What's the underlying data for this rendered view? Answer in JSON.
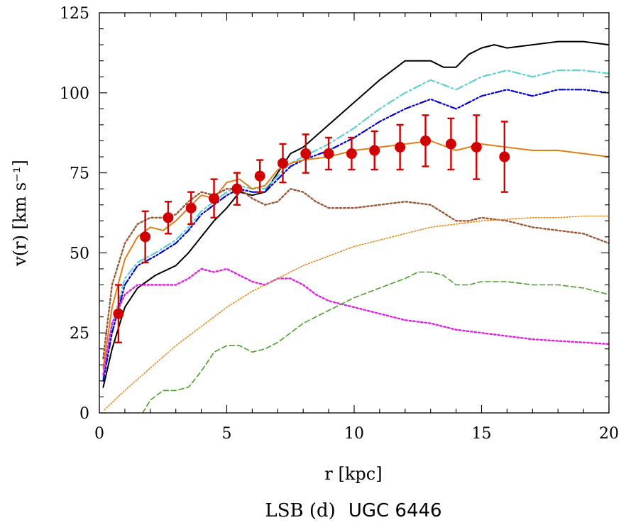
{
  "chart_data": {
    "type": "line",
    "title": "UGC 6446",
    "caption_prefix": "LSB (d)",
    "xlabel": "r [kpc]",
    "ylabel": "v(r) [km s⁻¹]",
    "xlim": [
      0,
      20
    ],
    "ylim": [
      0,
      125
    ],
    "xticks": [
      0,
      5,
      10,
      15,
      20
    ],
    "yticks": [
      0,
      25,
      50,
      75,
      100,
      125
    ],
    "grid": false,
    "colors": {
      "observed": "#d10000",
      "total_black": "#000000",
      "cyan": "#5fcfcf",
      "blue": "#0000d0",
      "orange": "#e07f1a",
      "brown": "#9a5a3a",
      "magenta": "#e020e0",
      "green": "#4aa02a",
      "orange_dotted": "#e08a20"
    },
    "series": [
      {
        "name": "total (black solid)",
        "style": "solid",
        "color_key": "total_black",
        "x": [
          0.15,
          0.5,
          1.0,
          1.5,
          2.2,
          3.0,
          3.5,
          4.0,
          4.5,
          5.0,
          5.5,
          6.0,
          6.5,
          7.0,
          7.5,
          8.0,
          9.0,
          10.0,
          11.0,
          12.0,
          12.5,
          13.0,
          13.5,
          14.0,
          14.5,
          15.0,
          15.5,
          16.0,
          17.0,
          18.0,
          19.0,
          20.0
        ],
        "y": [
          8,
          20,
          33,
          39,
          43,
          46,
          50,
          55,
          60,
          64,
          69,
          68,
          69,
          75,
          81,
          83,
          90,
          97,
          104,
          110,
          110,
          110,
          108,
          108,
          112,
          114,
          115,
          114,
          115,
          116,
          116,
          115
        ]
      },
      {
        "name": "cyan dash-dot",
        "style": "dashdot",
        "color_key": "cyan",
        "x": [
          0.15,
          0.5,
          1.0,
          1.5,
          2.2,
          3.0,
          3.5,
          4.0,
          4.5,
          5.0,
          5.5,
          6.0,
          6.5,
          7.0,
          7.5,
          8.0,
          9.0,
          10.0,
          11.0,
          12.0,
          13.0,
          14.0,
          15.0,
          16.0,
          17.0,
          18.0,
          19.0,
          20.0
        ],
        "y": [
          11,
          27,
          42,
          47,
          50,
          54,
          58,
          63,
          66,
          69,
          71,
          70,
          70,
          74,
          78,
          80,
          84,
          89,
          95,
          100,
          104,
          101,
          105,
          107,
          105,
          107,
          107,
          106
        ]
      },
      {
        "name": "blue dash-dot-dot",
        "style": "dashdotdot",
        "color_key": "blue",
        "x": [
          0.15,
          0.5,
          1.0,
          1.5,
          2.2,
          3.0,
          3.5,
          4.0,
          4.5,
          5.0,
          5.5,
          6.0,
          6.5,
          7.0,
          7.5,
          8.0,
          9.0,
          10.0,
          11.0,
          12.0,
          13.0,
          14.0,
          15.0,
          16.0,
          17.0,
          18.0,
          19.0,
          20.0
        ],
        "y": [
          10,
          25,
          40,
          46,
          49,
          53,
          57,
          62,
          65,
          68,
          70,
          69,
          69,
          73,
          77,
          79,
          82,
          86,
          91,
          95,
          98,
          95,
          99,
          101,
          99,
          101,
          101,
          100
        ]
      },
      {
        "name": "orange solid",
        "style": "solid",
        "color_key": "orange",
        "x": [
          0.15,
          0.5,
          1.0,
          1.5,
          2.0,
          2.5,
          3.0,
          3.5,
          4.0,
          4.5,
          5.0,
          5.5,
          6.0,
          6.5,
          7.0,
          7.5,
          8.0,
          9.0,
          10.0,
          11.0,
          12.0,
          13.0,
          14.0,
          15.0,
          16.0,
          17.0,
          18.0,
          19.0,
          20.0
        ],
        "y": [
          14,
          33,
          48,
          55,
          58,
          57,
          60,
          64,
          68,
          67,
          72,
          73,
          70,
          71,
          76,
          78,
          79,
          80,
          82,
          83,
          84,
          85,
          82,
          84,
          83,
          82,
          82,
          81,
          80
        ]
      },
      {
        "name": "brown dotted",
        "style": "dotted",
        "color_key": "brown",
        "x": [
          0.15,
          0.5,
          1.0,
          1.5,
          2.0,
          2.5,
          3.0,
          3.5,
          4.0,
          4.5,
          5.0,
          5.5,
          6.0,
          6.5,
          7.0,
          7.5,
          8.0,
          8.5,
          9.0,
          10.0,
          11.0,
          12.0,
          13.0,
          14.0,
          14.5,
          15.0,
          16.0,
          17.0,
          18.0,
          19.0,
          20.0
        ],
        "y": [
          17,
          40,
          53,
          59,
          61,
          61,
          62,
          66,
          69,
          68,
          70,
          70,
          67,
          65,
          66,
          70,
          69,
          66,
          64,
          64,
          65,
          66,
          65,
          60,
          60,
          61,
          60,
          58,
          57,
          56,
          53
        ]
      },
      {
        "name": "magenta dotted",
        "style": "dotted",
        "color_key": "magenta",
        "x": [
          0.15,
          0.5,
          1.0,
          1.5,
          2.0,
          2.5,
          3.0,
          3.5,
          4.0,
          4.5,
          5.0,
          5.5,
          6.0,
          6.5,
          7.0,
          7.5,
          8.0,
          8.5,
          9.0,
          10.0,
          11.0,
          12.0,
          13.0,
          14.0,
          15.0,
          16.0,
          17.0,
          18.0,
          19.0,
          20.0
        ],
        "y": [
          12,
          28,
          37,
          40,
          40,
          40,
          40,
          42,
          45,
          44,
          45,
          43,
          41,
          40,
          42,
          42,
          40,
          37,
          35,
          33,
          31,
          29,
          28,
          26,
          25,
          24,
          23,
          22.5,
          22,
          21.5
        ]
      },
      {
        "name": "green dashed",
        "style": "dashed",
        "color_key": "green",
        "x": [
          1.7,
          2.0,
          2.5,
          3.0,
          3.5,
          4.0,
          4.5,
          5.0,
          5.5,
          6.0,
          6.5,
          7.0,
          7.5,
          8.0,
          8.5,
          9.0,
          9.5,
          10.0,
          11.0,
          12.0,
          12.5,
          13.0,
          13.5,
          14.0,
          14.5,
          15.0,
          16.0,
          17.0,
          18.0,
          19.0,
          20.0
        ],
        "y": [
          0,
          4,
          7,
          7,
          8,
          13,
          19,
          21,
          21,
          19,
          20,
          22,
          25,
          28,
          30,
          32,
          34,
          36,
          39,
          42,
          44,
          44,
          43,
          40,
          40,
          41,
          41,
          40,
          40,
          39,
          37
        ]
      },
      {
        "name": "orange dotted",
        "style": "fine-dotted",
        "color_key": "orange_dotted",
        "x": [
          0.2,
          1,
          2,
          3,
          4,
          5,
          6,
          7,
          8,
          9,
          10,
          11,
          12,
          13,
          14,
          15,
          16,
          17,
          18,
          19,
          20
        ],
        "y": [
          1,
          7,
          14,
          21,
          27,
          33,
          38,
          42,
          46,
          49,
          52,
          54,
          56,
          58,
          59,
          60,
          60.5,
          61,
          61,
          61.5,
          61.5
        ]
      }
    ],
    "observed": {
      "name": "UGC 6446 data",
      "x": [
        0.75,
        1.8,
        2.7,
        3.6,
        4.5,
        5.4,
        6.3,
        7.2,
        8.1,
        9.0,
        9.9,
        10.8,
        11.8,
        12.8,
        13.8,
        14.8,
        15.9
      ],
      "y": [
        31,
        55,
        61,
        64,
        67,
        70,
        74,
        78,
        81,
        81,
        81,
        82,
        83,
        85,
        84,
        83,
        80
      ],
      "err": [
        9,
        8,
        5,
        5,
        6,
        5,
        5,
        6,
        6,
        5,
        5,
        6,
        7,
        8,
        8,
        10,
        11
      ]
    }
  }
}
